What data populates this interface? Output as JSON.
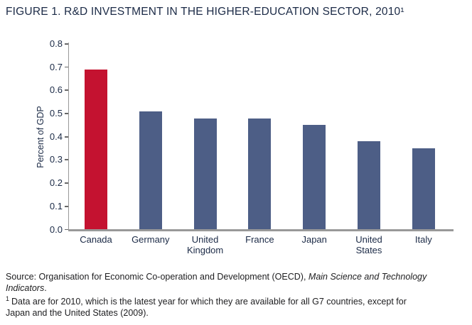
{
  "chart_data": {
    "type": "bar",
    "title": "FIGURE 1. R&D INVESTMENT IN THE HIGHER-EDUCATION SECTOR, 2010¹",
    "categories": [
      "Canada",
      "Germany",
      "United\nKingdom",
      "France",
      "Japan",
      "United\nStates",
      "Italy"
    ],
    "values": [
      0.69,
      0.51,
      0.48,
      0.48,
      0.45,
      0.38,
      0.35
    ],
    "highlight_index": 0,
    "xlabel": "",
    "ylabel": "Percent of GDP",
    "ylim": [
      0,
      0.8
    ],
    "ytick_labels": [
      "0.0",
      "0.1",
      "0.2",
      "0.3",
      "0.4",
      "0.5",
      "0.6",
      "0.7",
      "0.8"
    ],
    "grid": false,
    "legend": false
  },
  "source": {
    "prefix": "Source: Organisation for Economic Co-operation and Development (OECD), ",
    "italic": "Main Science and Technology Indicators",
    "suffix": "."
  },
  "footnote": {
    "marker": "1",
    "line1": "Data are for 2010, which is the latest year for which they are available for all G7 countries, except for",
    "line2": "Japan and the United States (2009)."
  },
  "colors": {
    "highlight_bar": "#c41230",
    "default_bar": "#4d5e86",
    "heading_text": "#1b2a46",
    "axis_text": "#1b2a46",
    "axis_line": "#999999",
    "tick_mark": "#666666",
    "body_text": "#1d1d1f"
  }
}
